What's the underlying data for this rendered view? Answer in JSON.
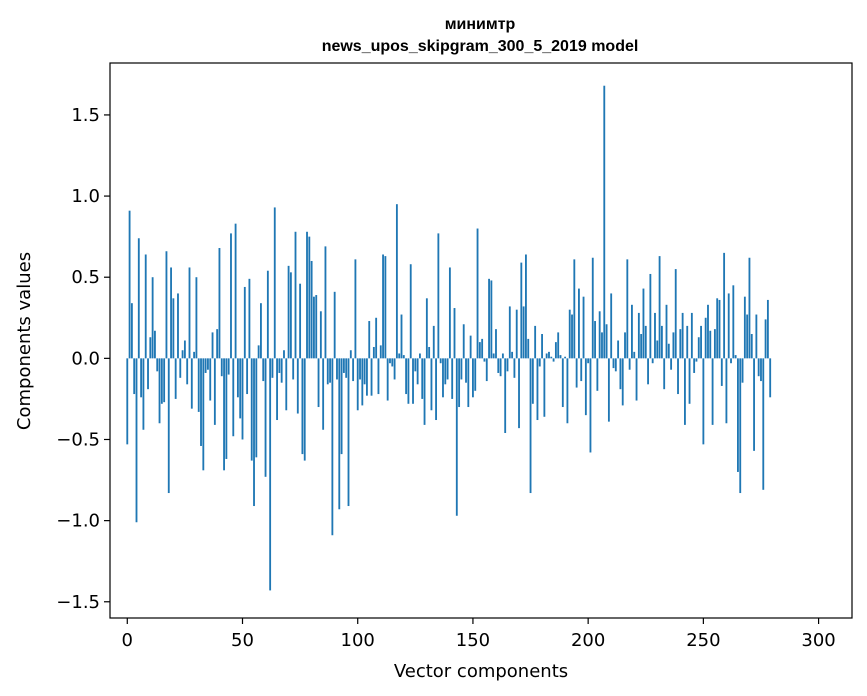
{
  "chart_data": {
    "type": "bar",
    "title_line1": "минимтр",
    "title_line2": "news_upos_skipgram_300_5_2019 model",
    "xlabel": "Vector components",
    "ylabel": "Components values",
    "xlim": [
      -7.5,
      314.5
    ],
    "ylim": [
      -1.6,
      1.82
    ],
    "xticks": [
      0,
      50,
      100,
      150,
      200,
      250,
      300
    ],
    "xtick_labels": [
      "0",
      "50",
      "100",
      "150",
      "200",
      "250",
      "300"
    ],
    "yticks": [
      -1.5,
      -1.0,
      -0.5,
      0.0,
      0.5,
      1.0,
      1.5
    ],
    "ytick_labels": [
      "−1.5",
      "−1.0",
      "−0.5",
      "0.0",
      "0.5",
      "1.0",
      "1.5"
    ],
    "bar_color": "#1f77b4",
    "grid": false,
    "values": [
      -0.53,
      0.91,
      0.34,
      -0.22,
      -1.01,
      0.74,
      -0.24,
      -0.44,
      0.64,
      -0.19,
      0.13,
      0.5,
      0.17,
      -0.08,
      -0.4,
      -0.28,
      -0.27,
      0.66,
      -0.83,
      0.56,
      0.37,
      -0.25,
      0.4,
      -0.12,
      0.05,
      0.11,
      -0.16,
      0.56,
      -0.31,
      0.04,
      0.5,
      -0.33,
      -0.54,
      -0.69,
      -0.09,
      -0.07,
      -0.26,
      0.16,
      -0.41,
      0.18,
      0.68,
      -0.11,
      -0.69,
      -0.62,
      -0.1,
      0.77,
      -0.48,
      0.83,
      -0.24,
      -0.37,
      -0.5,
      0.44,
      -0.22,
      0.49,
      -0.63,
      -0.91,
      -0.61,
      0.08,
      0.34,
      -0.14,
      -0.73,
      0.54,
      -1.43,
      -0.12,
      0.93,
      -0.38,
      -0.09,
      -0.15,
      0.05,
      -0.32,
      0.57,
      0.53,
      -0.13,
      0.78,
      -0.34,
      0.46,
      -0.59,
      -0.63,
      0.78,
      0.75,
      0.6,
      0.38,
      0.39,
      -0.3,
      0.29,
      -0.44,
      0.69,
      -0.16,
      -0.15,
      -1.09,
      0.41,
      -0.13,
      -0.93,
      -0.59,
      -0.09,
      -0.12,
      -0.91,
      0.05,
      -0.14,
      0.61,
      -0.32,
      -0.13,
      -0.29,
      -0.16,
      -0.23,
      0.23,
      -0.23,
      0.07,
      0.25,
      -0.22,
      0.08,
      0.64,
      0.63,
      -0.26,
      -0.03,
      -0.05,
      -0.13,
      0.95,
      0.03,
      0.27,
      0.02,
      -0.22,
      -0.28,
      0.58,
      -0.28,
      -0.08,
      -0.16,
      0.03,
      -0.25,
      -0.41,
      0.37,
      0.07,
      -0.32,
      0.2,
      -0.38,
      0.77,
      -0.03,
      -0.24,
      -0.16,
      -0.13,
      0.56,
      -0.25,
      0.31,
      -0.97,
      -0.3,
      -0.13,
      0.21,
      -0.15,
      -0.3,
      0.14,
      -0.24,
      -0.2,
      0.8,
      0.1,
      0.12,
      -0.02,
      -0.14,
      0.49,
      0.48,
      0.03,
      0.18,
      -0.09,
      -0.11,
      0.03,
      -0.46,
      -0.08,
      0.32,
      0.04,
      -0.12,
      0.3,
      -0.43,
      0.59,
      0.32,
      0.64,
      0.12,
      -0.83,
      -0.28,
      0.2,
      -0.38,
      -0.05,
      0.15,
      -0.36,
      0.03,
      0.04,
      0.01,
      -0.02,
      0.1,
      0.16,
      0.02,
      -0.3,
      0.01,
      -0.4,
      0.3,
      0.27,
      0.61,
      -0.18,
      0.43,
      -0.14,
      0.38,
      -0.35,
      -0.03,
      -0.58,
      0.62,
      0.23,
      -0.2,
      0.29,
      0.16,
      1.68,
      0.21,
      -0.39,
      0.4,
      -0.06,
      -0.08,
      0.11,
      -0.19,
      -0.29,
      0.16,
      0.61,
      -0.07,
      0.33
    ],
    "values_part2": []
  }
}
